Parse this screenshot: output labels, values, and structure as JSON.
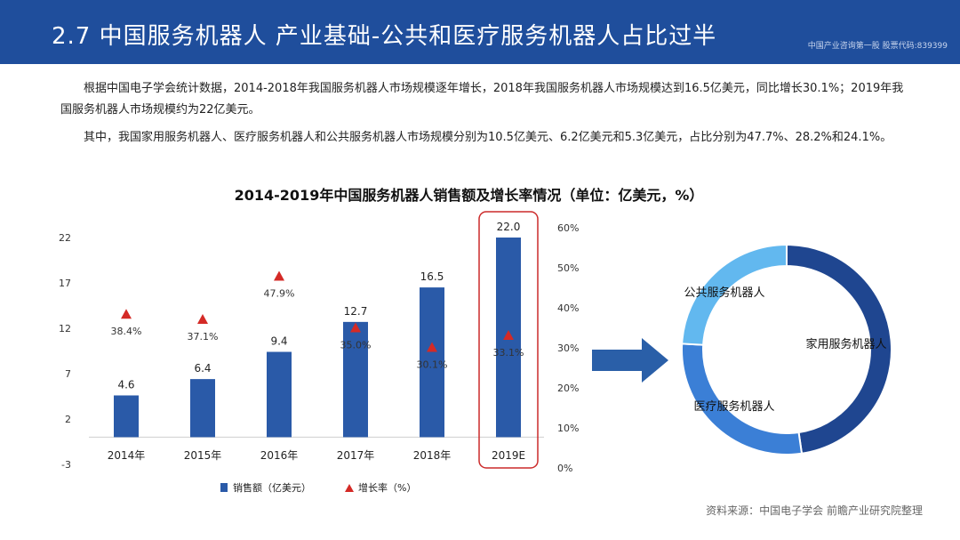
{
  "header": {
    "title": "2.7 中国服务机器人 产业基础-公共和医疗服务机器人占比过半",
    "note": "中国产业咨询第一股  股票代码:839399"
  },
  "paragraphs": [
    "根据中国电子学会统计数据，2014-2018年我国服务机器人市场规模逐年增长，2018年我国服务机器人市场规模达到16.5亿美元，同比增长30.1%；2019年我国服务机器人市场规模约为22亿美元。",
    "其中，我国家用服务机器人、医疗服务机器人和公共服务机器人市场规模分别为10.5亿美元、6.2亿美元和5.3亿美元，占比分别为47.7%、28.2%和24.1%。"
  ],
  "colors": {
    "header": "#1f4e9c",
    "bar": "#2a5aa8",
    "growth_marker": "#d42a26",
    "highlight_box": "#cc2a2a",
    "arrow": "#2a5fa8",
    "donut_home": "#1f4690",
    "donut_medical": "#3b7fd6",
    "donut_public": "#62b8ef"
  },
  "chart_data": [
    {
      "type": "bar",
      "title": "2014-2019年中国服务机器人销售额及增长率情况（单位：亿美元，%）",
      "categories": [
        "2014年",
        "2015年",
        "2016年",
        "2017年",
        "2018年",
        "2019E"
      ],
      "series": [
        {
          "name": "销售额（亿美元）",
          "type": "bar",
          "axis": "left",
          "values": [
            4.6,
            6.4,
            9.4,
            12.7,
            16.5,
            22.0
          ],
          "labels": [
            "4.6",
            "6.4",
            "9.4",
            "12.7",
            "16.5",
            "22.0"
          ]
        },
        {
          "name": "增长率（%）",
          "type": "scatter",
          "axis": "right",
          "values": [
            38.4,
            37.1,
            47.9,
            35.0,
            30.1,
            33.1
          ],
          "labels": [
            "38.4%",
            "37.1%",
            "47.9%",
            "35.0%",
            "30.1%",
            "33.1%"
          ]
        }
      ],
      "y_left": {
        "lim": [
          -3,
          22
        ],
        "ticks": [
          -3,
          2,
          7,
          12,
          17,
          22
        ]
      },
      "y_right": {
        "lim": [
          0,
          60
        ],
        "ticks": [
          "0%",
          "10%",
          "20%",
          "30%",
          "40%",
          "50%",
          "60%"
        ]
      },
      "highlight_category": "2019E",
      "legend_position": "bottom",
      "grid": false
    },
    {
      "type": "pie",
      "donut": true,
      "slices": [
        {
          "label": "家用服务机器人",
          "value": 47.7
        },
        {
          "label": "医疗服务机器人",
          "value": 28.2
        },
        {
          "label": "公共服务机器人",
          "value": 24.1
        }
      ]
    }
  ],
  "source": "资料来源：中国电子学会  前瞻产业研究院整理"
}
